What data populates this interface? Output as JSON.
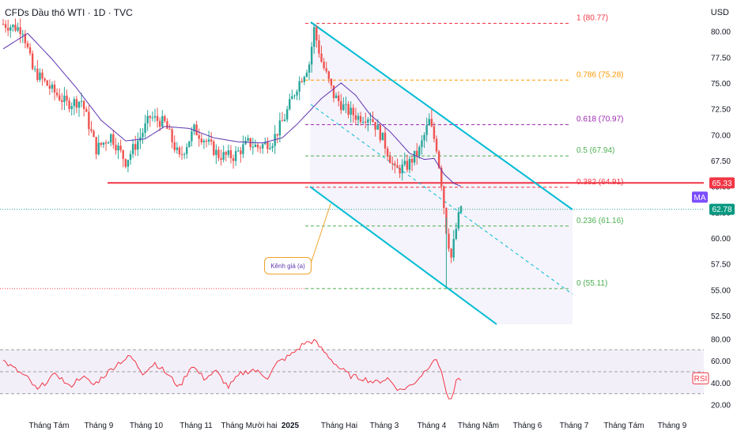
{
  "header": {
    "title": "CFDs Dầu thô WTI · 1D · TVC",
    "currency": "USD"
  },
  "colors": {
    "up": "#26a69a",
    "down": "#ef5350",
    "ma": "#5e35b1",
    "channel": "#00bcd4",
    "support": "#f23645",
    "rsi": "#f23645"
  },
  "chart_data": {
    "type": "candlestick",
    "x_labels": [
      "Tháng Tám",
      "Tháng 9",
      "Tháng 10",
      "Tháng 11",
      "Tháng Mười hai",
      "2025",
      "Tháng Hai",
      "Tháng 3",
      "Tháng 4",
      "Tháng Năm",
      "Tháng 6",
      "Tháng 7",
      "Tháng Tám",
      "Tháng 9"
    ],
    "y_ticks": [
      "80.00",
      "77.50",
      "75.00",
      "72.50",
      "70.00",
      "67.50",
      "65.00",
      "62.50",
      "60.00",
      "57.50",
      "55.00",
      "52.50"
    ],
    "ylim": [
      51.5,
      81.5
    ],
    "price_path": [
      {
        "i": 0,
        "p": 80.7
      },
      {
        "i": 8,
        "p": 80.2
      },
      {
        "i": 12,
        "p": 76.3
      },
      {
        "i": 20,
        "p": 74.3
      },
      {
        "i": 26,
        "p": 73.0
      },
      {
        "i": 32,
        "p": 73.3
      },
      {
        "i": 38,
        "p": 68.6
      },
      {
        "i": 44,
        "p": 69.9
      },
      {
        "i": 50,
        "p": 67.4
      },
      {
        "i": 56,
        "p": 69.8
      },
      {
        "i": 60,
        "p": 71.7
      },
      {
        "i": 66,
        "p": 71.1
      },
      {
        "i": 72,
        "p": 67.7
      },
      {
        "i": 78,
        "p": 70.5
      },
      {
        "i": 82,
        "p": 69.6
      },
      {
        "i": 88,
        "p": 68.0
      },
      {
        "i": 94,
        "p": 67.9
      },
      {
        "i": 100,
        "p": 69.2
      },
      {
        "i": 104,
        "p": 68.8
      },
      {
        "i": 110,
        "p": 69.4
      },
      {
        "i": 115,
        "p": 71.7
      },
      {
        "i": 120,
        "p": 74.7
      },
      {
        "i": 125,
        "p": 76.9
      },
      {
        "i": 127,
        "p": 80.2
      },
      {
        "i": 130,
        "p": 77.1
      },
      {
        "i": 135,
        "p": 73.8
      },
      {
        "i": 140,
        "p": 72.4
      },
      {
        "i": 145,
        "p": 71.7
      },
      {
        "i": 150,
        "p": 71.8
      },
      {
        "i": 155,
        "p": 69.6
      },
      {
        "i": 160,
        "p": 66.5
      },
      {
        "i": 165,
        "p": 67.0
      },
      {
        "i": 170,
        "p": 68.5
      },
      {
        "i": 174,
        "p": 71.3
      },
      {
        "i": 177,
        "p": 68.8
      },
      {
        "i": 179,
        "p": 65.4
      },
      {
        "i": 181,
        "p": 60.8
      },
      {
        "i": 183,
        "p": 58.1
      },
      {
        "i": 185,
        "p": 60.9
      },
      {
        "i": 187,
        "p": 63.1
      }
    ],
    "ma_path": [
      {
        "i": 0,
        "p": 78.3
      },
      {
        "i": 10,
        "p": 79.8
      },
      {
        "i": 20,
        "p": 77.3
      },
      {
        "i": 30,
        "p": 74.5
      },
      {
        "i": 40,
        "p": 71.4
      },
      {
        "i": 50,
        "p": 69.4
      },
      {
        "i": 58,
        "p": 69.6
      },
      {
        "i": 66,
        "p": 70.8
      },
      {
        "i": 76,
        "p": 70.6
      },
      {
        "i": 86,
        "p": 69.7
      },
      {
        "i": 96,
        "p": 69.3
      },
      {
        "i": 106,
        "p": 69.2
      },
      {
        "i": 114,
        "p": 69.7
      },
      {
        "i": 120,
        "p": 71.0
      },
      {
        "i": 130,
        "p": 73.5
      },
      {
        "i": 138,
        "p": 75.0
      },
      {
        "i": 144,
        "p": 73.8
      },
      {
        "i": 150,
        "p": 71.9
      },
      {
        "i": 158,
        "p": 70.3
      },
      {
        "i": 166,
        "p": 68.2
      },
      {
        "i": 172,
        "p": 67.6
      },
      {
        "i": 176,
        "p": 67.7
      },
      {
        "i": 180,
        "p": 66.2
      },
      {
        "i": 184,
        "p": 65.3
      },
      {
        "i": 187,
        "p": 65.0
      }
    ],
    "fib_levels": [
      {
        "ratio": "1",
        "value": 80.77,
        "label": "1 (80.77)",
        "color": "#f23645"
      },
      {
        "ratio": "0.786",
        "value": 75.28,
        "label": "0.786 (75.28)",
        "color": "#ff9800"
      },
      {
        "ratio": "0.618",
        "value": 70.97,
        "label": "0.618 (70.97)",
        "color": "#9c27b0"
      },
      {
        "ratio": "0.5",
        "value": 67.94,
        "label": "0.5 (67.94)",
        "color": "#4caf50"
      },
      {
        "ratio": "0.382",
        "value": 64.91,
        "label": "0.382 (64.91)",
        "color": "#f23645"
      },
      {
        "ratio": "0.236",
        "value": 61.16,
        "label": "0.236 (61.16)",
        "color": "#4caf50"
      },
      {
        "ratio": "0",
        "value": 55.11,
        "label": "0 (55.11)",
        "color": "#4caf50"
      }
    ],
    "support_price": 65.33,
    "last_price": 62.78,
    "price_tags": [
      {
        "value": 65.33,
        "label": "65.33",
        "color": "#f23645"
      },
      {
        "value": 65.33,
        "label": "MA",
        "color": "#7c4dff"
      },
      {
        "value": 62.78,
        "label": "62.78",
        "color": "#089981"
      }
    ],
    "annotation": "Kênh giá (a)",
    "rsi": {
      "label": "RSI",
      "ticks": [
        "80.00",
        "60.00",
        "40.00",
        "20.00"
      ],
      "ylim": [
        14,
        86
      ],
      "bands": [
        70,
        50,
        30
      ],
      "path": [
        {
          "i": 0,
          "v": 60
        },
        {
          "i": 5,
          "v": 52
        },
        {
          "i": 10,
          "v": 44
        },
        {
          "i": 14,
          "v": 33
        },
        {
          "i": 18,
          "v": 42
        },
        {
          "i": 22,
          "v": 48
        },
        {
          "i": 27,
          "v": 36
        },
        {
          "i": 32,
          "v": 46
        },
        {
          "i": 37,
          "v": 38
        },
        {
          "i": 42,
          "v": 48
        },
        {
          "i": 47,
          "v": 58
        },
        {
          "i": 52,
          "v": 64
        },
        {
          "i": 57,
          "v": 49
        },
        {
          "i": 62,
          "v": 58
        },
        {
          "i": 67,
          "v": 48
        },
        {
          "i": 72,
          "v": 36
        },
        {
          "i": 77,
          "v": 56
        },
        {
          "i": 82,
          "v": 44
        },
        {
          "i": 87,
          "v": 50
        },
        {
          "i": 92,
          "v": 36
        },
        {
          "i": 97,
          "v": 48
        },
        {
          "i": 102,
          "v": 52
        },
        {
          "i": 108,
          "v": 45
        },
        {
          "i": 112,
          "v": 58
        },
        {
          "i": 118,
          "v": 66
        },
        {
          "i": 123,
          "v": 76
        },
        {
          "i": 127,
          "v": 78
        },
        {
          "i": 132,
          "v": 66
        },
        {
          "i": 137,
          "v": 54
        },
        {
          "i": 142,
          "v": 46
        },
        {
          "i": 147,
          "v": 44
        },
        {
          "i": 152,
          "v": 40
        },
        {
          "i": 157,
          "v": 44
        },
        {
          "i": 162,
          "v": 33
        },
        {
          "i": 167,
          "v": 38
        },
        {
          "i": 172,
          "v": 50
        },
        {
          "i": 176,
          "v": 62
        },
        {
          "i": 179,
          "v": 52
        },
        {
          "i": 181,
          "v": 30
        },
        {
          "i": 183,
          "v": 23
        },
        {
          "i": 185,
          "v": 40
        },
        {
          "i": 187,
          "v": 44
        }
      ]
    }
  }
}
